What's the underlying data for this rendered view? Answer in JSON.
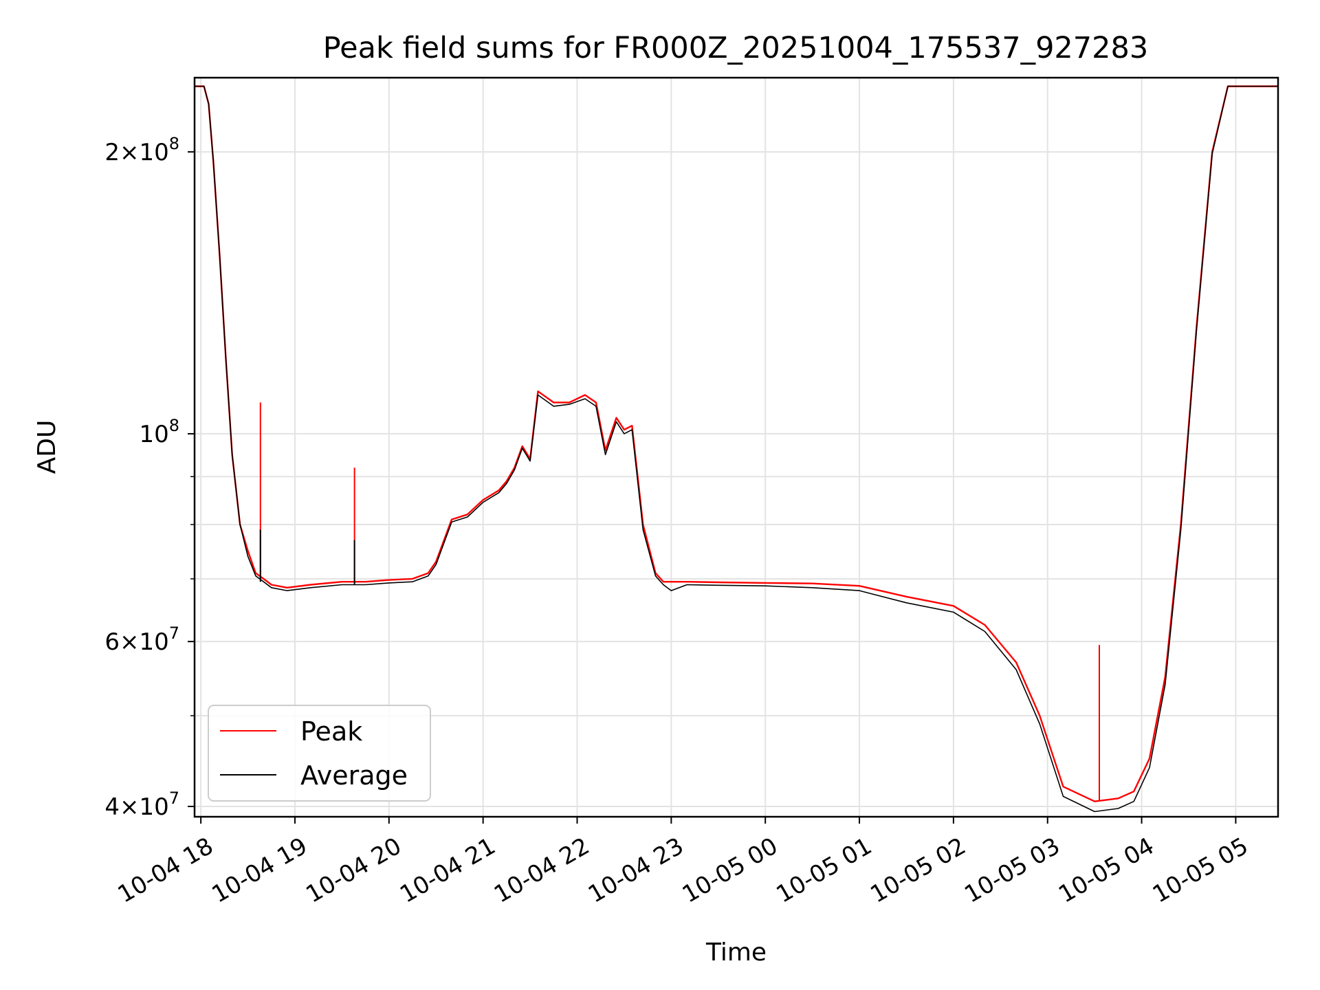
{
  "chart_data": {
    "type": "line",
    "title": "Peak field sums for FR000Z_20251004_175537_927283",
    "xlabel": "Time",
    "ylabel": "ADU",
    "y_scale": "log",
    "ylim": [
      39000000,
      240000000
    ],
    "xlim": [
      "2025-10-04 17:56",
      "2025-10-05 05:27"
    ],
    "grid": true,
    "legend_position": "lower-left",
    "x_ticks": [
      {
        "value": "2025-10-04 18:00",
        "label": "10-04 18"
      },
      {
        "value": "2025-10-04 19:00",
        "label": "10-04 19"
      },
      {
        "value": "2025-10-04 20:00",
        "label": "10-04 20"
      },
      {
        "value": "2025-10-04 21:00",
        "label": "10-04 21"
      },
      {
        "value": "2025-10-04 22:00",
        "label": "10-04 22"
      },
      {
        "value": "2025-10-04 23:00",
        "label": "10-04 23"
      },
      {
        "value": "2025-10-05 00:00",
        "label": "10-05 00"
      },
      {
        "value": "2025-10-05 01:00",
        "label": "10-05 01"
      },
      {
        "value": "2025-10-05 02:00",
        "label": "10-05 02"
      },
      {
        "value": "2025-10-05 03:00",
        "label": "10-05 03"
      },
      {
        "value": "2025-10-05 04:00",
        "label": "10-05 04"
      },
      {
        "value": "2025-10-05 05:00",
        "label": "10-05 05"
      }
    ],
    "y_ticks": [
      {
        "value": 40000000,
        "mantissa": "4",
        "exponent": "7"
      },
      {
        "value": 60000000,
        "mantissa": "6",
        "exponent": "7"
      },
      {
        "value": 100000000,
        "mantissa": "",
        "exponent": "8"
      },
      {
        "value": 200000000,
        "mantissa": "2",
        "exponent": "8"
      }
    ],
    "y_minor_ticks": [
      50000000,
      70000000,
      80000000,
      90000000,
      300000000
    ],
    "series": [
      {
        "name": "Peak",
        "color": "#ff0000",
        "x": [
          "2025-10-04 17:56",
          "2025-10-04 18:02",
          "2025-10-04 18:05",
          "2025-10-04 18:08",
          "2025-10-04 18:12",
          "2025-10-04 18:16",
          "2025-10-04 18:20",
          "2025-10-04 18:25",
          "2025-10-04 18:30",
          "2025-10-04 18:35",
          "2025-10-04 18:40",
          "2025-10-04 18:45",
          "2025-10-04 18:55",
          "2025-10-04 19:10",
          "2025-10-04 19:30",
          "2025-10-04 19:45",
          "2025-10-04 20:00",
          "2025-10-04 20:15",
          "2025-10-04 20:25",
          "2025-10-04 20:30",
          "2025-10-04 20:40",
          "2025-10-04 20:50",
          "2025-10-04 21:00",
          "2025-10-04 21:10",
          "2025-10-04 21:15",
          "2025-10-04 21:20",
          "2025-10-04 21:25",
          "2025-10-04 21:30",
          "2025-10-04 21:35",
          "2025-10-04 21:45",
          "2025-10-04 21:55",
          "2025-10-04 22:05",
          "2025-10-04 22:12",
          "2025-10-04 22:18",
          "2025-10-04 22:25",
          "2025-10-04 22:30",
          "2025-10-04 22:35",
          "2025-10-04 22:42",
          "2025-10-04 22:50",
          "2025-10-04 22:55",
          "2025-10-04 23:00",
          "2025-10-04 23:10",
          "2025-10-04 23:30",
          "2025-10-05 00:00",
          "2025-10-05 00:30",
          "2025-10-05 01:00",
          "2025-10-05 01:30",
          "2025-10-05 02:00",
          "2025-10-05 02:20",
          "2025-10-05 02:40",
          "2025-10-05 02:55",
          "2025-10-05 03:10",
          "2025-10-05 03:30",
          "2025-10-05 03:45",
          "2025-10-05 03:55",
          "2025-10-05 04:05",
          "2025-10-05 04:15",
          "2025-10-05 04:25",
          "2025-10-05 04:35",
          "2025-10-05 04:45",
          "2025-10-05 04:55",
          "2025-10-05 05:05",
          "2025-10-05 05:15",
          "2025-10-05 05:27"
        ],
        "values": [
          235000000,
          235000000,
          225000000,
          195000000,
          155000000,
          120000000,
          95000000,
          80000000,
          75000000,
          71000000,
          70000000,
          69000000,
          68500000,
          69000000,
          69500000,
          69500000,
          69800000,
          70000000,
          71000000,
          73000000,
          81000000,
          82000000,
          85000000,
          87000000,
          89000000,
          92000000,
          97000000,
          94000000,
          111000000,
          108000000,
          108000000,
          110000000,
          108000000,
          96000000,
          104000000,
          101000000,
          102000000,
          80000000,
          71000000,
          69500000,
          69500000,
          69500000,
          69400000,
          69300000,
          69200000,
          68800000,
          67000000,
          65500000,
          62500000,
          57000000,
          50000000,
          42000000,
          40500000,
          40800000,
          41500000,
          45000000,
          55000000,
          80000000,
          130000000,
          200000000,
          235000000,
          235000000,
          235000000,
          235000000
        ]
      },
      {
        "name": "Average",
        "color": "#000000",
        "x": [
          "2025-10-04 17:56",
          "2025-10-04 18:02",
          "2025-10-04 18:05",
          "2025-10-04 18:08",
          "2025-10-04 18:12",
          "2025-10-04 18:16",
          "2025-10-04 18:20",
          "2025-10-04 18:25",
          "2025-10-04 18:30",
          "2025-10-04 18:35",
          "2025-10-04 18:40",
          "2025-10-04 18:45",
          "2025-10-04 18:55",
          "2025-10-04 19:10",
          "2025-10-04 19:30",
          "2025-10-04 19:45",
          "2025-10-04 20:00",
          "2025-10-04 20:15",
          "2025-10-04 20:25",
          "2025-10-04 20:30",
          "2025-10-04 20:40",
          "2025-10-04 20:50",
          "2025-10-04 21:00",
          "2025-10-04 21:10",
          "2025-10-04 21:15",
          "2025-10-04 21:20",
          "2025-10-04 21:25",
          "2025-10-04 21:30",
          "2025-10-04 21:35",
          "2025-10-04 21:45",
          "2025-10-04 21:55",
          "2025-10-04 22:05",
          "2025-10-04 22:12",
          "2025-10-04 22:18",
          "2025-10-04 22:25",
          "2025-10-04 22:30",
          "2025-10-04 22:35",
          "2025-10-04 22:42",
          "2025-10-04 22:50",
          "2025-10-04 22:55",
          "2025-10-04 23:00",
          "2025-10-04 23:10",
          "2025-10-04 23:30",
          "2025-10-05 00:00",
          "2025-10-05 00:30",
          "2025-10-05 01:00",
          "2025-10-05 01:30",
          "2025-10-05 02:00",
          "2025-10-05 02:20",
          "2025-10-05 02:40",
          "2025-10-05 02:55",
          "2025-10-05 03:10",
          "2025-10-05 03:30",
          "2025-10-05 03:45",
          "2025-10-05 03:55",
          "2025-10-05 04:05",
          "2025-10-05 04:15",
          "2025-10-05 04:25",
          "2025-10-05 04:35",
          "2025-10-05 04:45",
          "2025-10-05 04:55",
          "2025-10-05 05:05",
          "2025-10-05 05:15",
          "2025-10-05 05:27"
        ],
        "values": [
          235000000,
          235000000,
          225000000,
          195000000,
          155000000,
          120000000,
          95000000,
          80000000,
          74000000,
          70500000,
          69500000,
          68500000,
          68000000,
          68500000,
          69000000,
          69000000,
          69300000,
          69500000,
          70500000,
          72500000,
          80500000,
          81500000,
          84500000,
          86500000,
          88500000,
          91500000,
          96500000,
          93500000,
          110000000,
          107000000,
          107500000,
          109000000,
          107000000,
          95000000,
          103000000,
          100000000,
          101000000,
          79000000,
          70500000,
          69000000,
          68000000,
          69000000,
          68900000,
          68800000,
          68500000,
          68000000,
          66000000,
          64500000,
          61500000,
          56000000,
          49000000,
          41000000,
          39500000,
          39800000,
          40500000,
          44000000,
          54000000,
          79000000,
          129000000,
          199000000,
          235000000,
          235000000,
          235000000,
          235000000
        ]
      }
    ],
    "spikes": [
      {
        "series": "Peak",
        "x": "2025-10-04 18:38",
        "value": 108000000
      },
      {
        "series": "Average",
        "x": "2025-10-04 18:38",
        "value": 79000000
      },
      {
        "series": "Peak",
        "x": "2025-10-04 19:38",
        "value": 92000000
      },
      {
        "series": "Average",
        "x": "2025-10-04 19:38",
        "value": 77000000
      },
      {
        "series": "Peak",
        "x": "2025-10-05 03:33",
        "value": 59500000
      }
    ]
  }
}
